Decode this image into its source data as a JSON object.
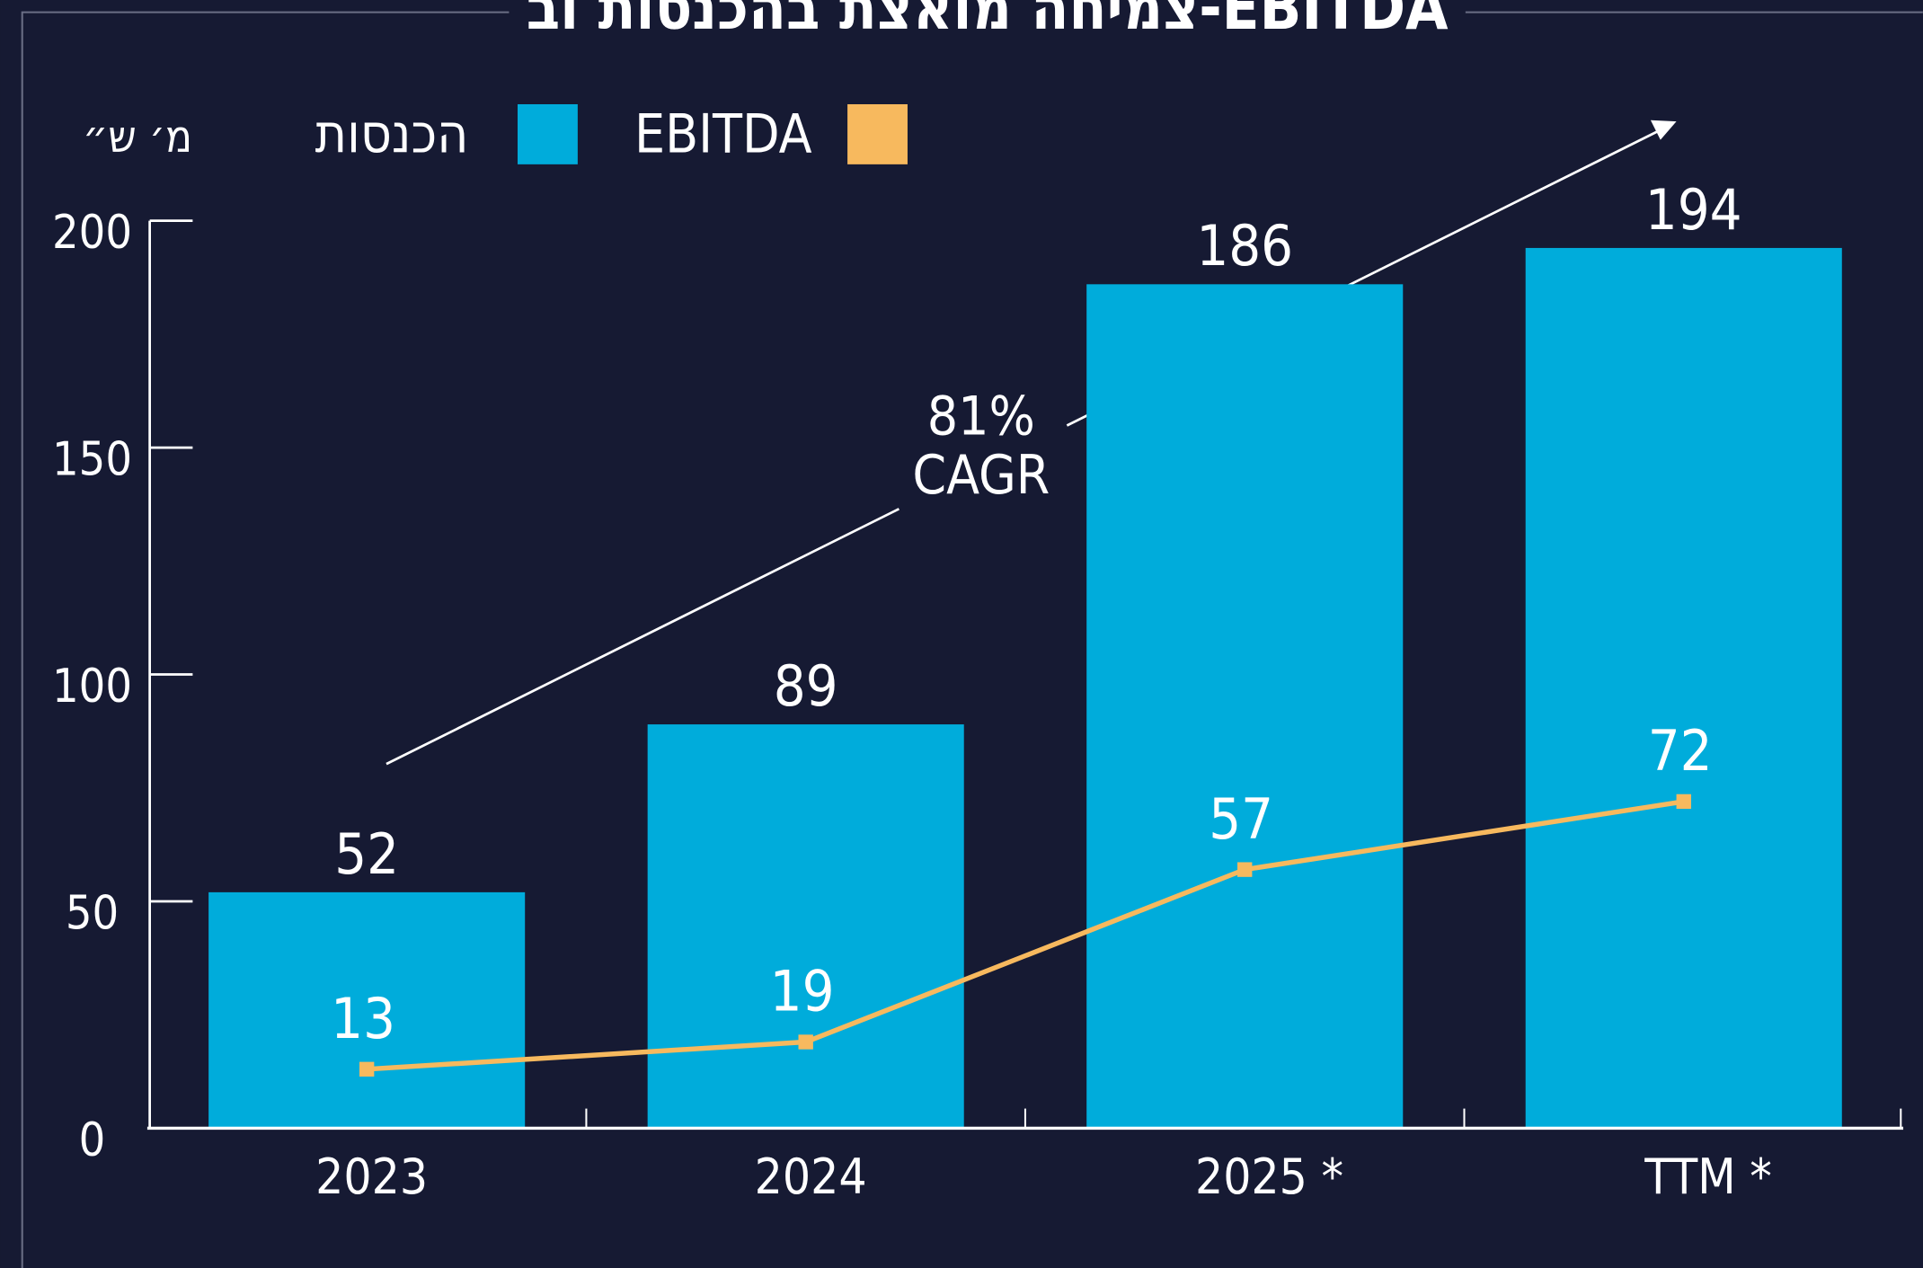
{
  "chart_data": {
    "type": "bar",
    "title": "צמיחה מואצת בהכנסות וב-EBITDA",
    "y_label": "מ׳ ש״",
    "annotation": [
      "81%",
      "CAGR"
    ],
    "categories": [
      "2023",
      "2024",
      "2025 *",
      "TTM *"
    ],
    "series": [
      {
        "name": "הכנסות",
        "type": "bar",
        "color": "#00acdb",
        "values": [
          52,
          89,
          186,
          194
        ]
      },
      {
        "name": "EBITDA",
        "type": "line",
        "color": "#f7b95e",
        "values": [
          13,
          19,
          57,
          72
        ]
      }
    ],
    "ylim": [
      0,
      200
    ],
    "yticks": [
      0,
      50,
      100,
      150,
      200
    ]
  }
}
